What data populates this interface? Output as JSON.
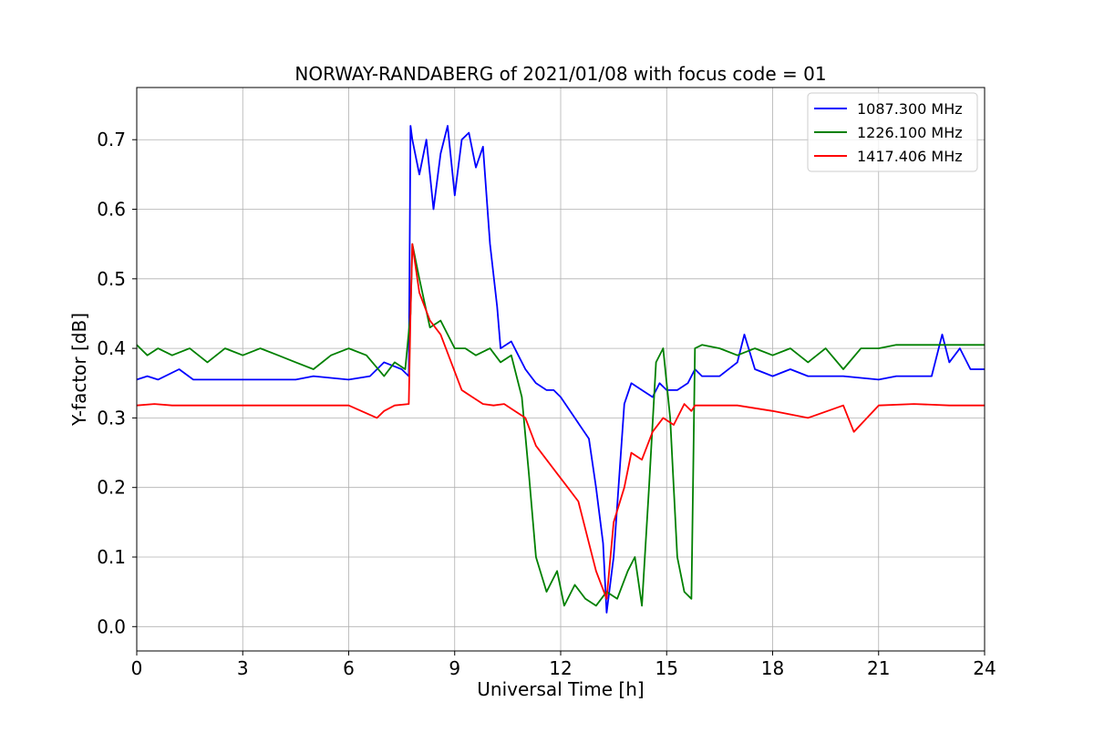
{
  "chart_data": {
    "type": "line",
    "title": "NORWAY-RANDABERG of 2021/01/08 with focus code = 01",
    "xlabel": "Universal Time [h]",
    "ylabel": "Y-factor [dB]",
    "xlim": [
      0,
      24
    ],
    "ylim": [
      -0.035,
      0.775
    ],
    "xticks": [
      0,
      3,
      6,
      9,
      12,
      15,
      18,
      21,
      24
    ],
    "yticks": [
      0.0,
      0.1,
      0.2,
      0.3,
      0.4,
      0.5,
      0.6,
      0.7
    ],
    "ytick_labels": [
      "0.0",
      "0.1",
      "0.2",
      "0.3",
      "0.4",
      "0.5",
      "0.6",
      "0.7"
    ],
    "grid": true,
    "legend_position": "top-right",
    "series": [
      {
        "name": "1087.300 MHz",
        "color": "#0000ff",
        "x": [
          0,
          0.3,
          0.6,
          1.2,
          1.6,
          2.0,
          3.0,
          4.5,
          5.0,
          6.0,
          6.6,
          7.0,
          7.5,
          7.7,
          7.75,
          7.8,
          8.0,
          8.2,
          8.4,
          8.6,
          8.8,
          9.0,
          9.2,
          9.4,
          9.6,
          9.8,
          10.0,
          10.2,
          10.3,
          10.6,
          10.8,
          11.0,
          11.3,
          11.6,
          11.8,
          12.0,
          12.4,
          12.8,
          13.0,
          13.2,
          13.3,
          13.5,
          13.8,
          14.0,
          14.3,
          14.6,
          14.8,
          15.0,
          15.3,
          15.6,
          15.8,
          16.0,
          16.5,
          17.0,
          17.2,
          17.5,
          18.0,
          18.5,
          19.0,
          20.0,
          21.0,
          21.5,
          22.0,
          22.5,
          22.8,
          23.0,
          23.3,
          23.6,
          24.0
        ],
        "y": [
          0.355,
          0.36,
          0.355,
          0.37,
          0.355,
          0.355,
          0.355,
          0.355,
          0.36,
          0.355,
          0.36,
          0.38,
          0.37,
          0.36,
          0.72,
          0.7,
          0.65,
          0.7,
          0.6,
          0.68,
          0.72,
          0.62,
          0.7,
          0.71,
          0.66,
          0.69,
          0.55,
          0.46,
          0.4,
          0.41,
          0.39,
          0.37,
          0.35,
          0.34,
          0.34,
          0.33,
          0.3,
          0.27,
          0.2,
          0.12,
          0.02,
          0.1,
          0.32,
          0.35,
          0.34,
          0.33,
          0.35,
          0.34,
          0.34,
          0.35,
          0.37,
          0.36,
          0.36,
          0.38,
          0.42,
          0.37,
          0.36,
          0.37,
          0.36,
          0.36,
          0.355,
          0.36,
          0.36,
          0.36,
          0.42,
          0.38,
          0.4,
          0.37,
          0.37
        ]
      },
      {
        "name": "1226.100 MHz",
        "color": "#008000",
        "x": [
          0,
          0.3,
          0.6,
          1.0,
          1.5,
          2.0,
          2.5,
          3.0,
          3.5,
          4.0,
          4.5,
          5.0,
          5.5,
          6.0,
          6.5,
          7.0,
          7.3,
          7.6,
          7.75,
          7.8,
          8.0,
          8.3,
          8.6,
          9.0,
          9.3,
          9.6,
          10.0,
          10.3,
          10.6,
          10.9,
          11.1,
          11.3,
          11.6,
          11.9,
          12.1,
          12.4,
          12.7,
          13.0,
          13.3,
          13.6,
          13.9,
          14.1,
          14.3,
          14.5,
          14.7,
          14.9,
          15.1,
          15.3,
          15.5,
          15.7,
          15.8,
          16.0,
          16.5,
          17.0,
          17.5,
          18.0,
          18.5,
          19.0,
          19.5,
          20.0,
          20.5,
          21.0,
          21.5,
          22.0,
          22.5,
          23.0,
          23.5,
          24.0
        ],
        "y": [
          0.405,
          0.39,
          0.4,
          0.39,
          0.4,
          0.38,
          0.4,
          0.39,
          0.4,
          0.39,
          0.38,
          0.37,
          0.39,
          0.4,
          0.39,
          0.36,
          0.38,
          0.37,
          0.45,
          0.55,
          0.5,
          0.43,
          0.44,
          0.4,
          0.4,
          0.39,
          0.4,
          0.38,
          0.39,
          0.33,
          0.22,
          0.1,
          0.05,
          0.08,
          0.03,
          0.06,
          0.04,
          0.03,
          0.05,
          0.04,
          0.08,
          0.1,
          0.03,
          0.2,
          0.38,
          0.4,
          0.3,
          0.1,
          0.05,
          0.04,
          0.4,
          0.405,
          0.4,
          0.39,
          0.4,
          0.39,
          0.4,
          0.38,
          0.4,
          0.37,
          0.4,
          0.4,
          0.405,
          0.405,
          0.405,
          0.405,
          0.405,
          0.405
        ]
      },
      {
        "name": "1417.406 MHz",
        "color": "#ff0000",
        "x": [
          0,
          0.5,
          1.0,
          2.0,
          3.0,
          4.0,
          5.0,
          6.0,
          6.8,
          7.0,
          7.3,
          7.7,
          7.75,
          7.8,
          8.0,
          8.3,
          8.6,
          8.9,
          9.2,
          9.5,
          9.8,
          10.1,
          10.4,
          10.7,
          11.0,
          11.3,
          11.6,
          11.9,
          12.2,
          12.5,
          12.8,
          13.0,
          13.3,
          13.5,
          13.8,
          14.0,
          14.3,
          14.6,
          14.9,
          15.2,
          15.5,
          15.7,
          15.8,
          16.0,
          17.0,
          18.0,
          19.0,
          20.0,
          20.3,
          21.0,
          22.0,
          23.0,
          24.0
        ],
        "y": [
          0.318,
          0.32,
          0.318,
          0.318,
          0.318,
          0.318,
          0.318,
          0.318,
          0.3,
          0.31,
          0.318,
          0.32,
          0.45,
          0.55,
          0.48,
          0.44,
          0.42,
          0.38,
          0.34,
          0.33,
          0.32,
          0.318,
          0.32,
          0.31,
          0.3,
          0.26,
          0.24,
          0.22,
          0.2,
          0.18,
          0.12,
          0.08,
          0.04,
          0.15,
          0.2,
          0.25,
          0.24,
          0.28,
          0.3,
          0.29,
          0.32,
          0.31,
          0.318,
          0.318,
          0.318,
          0.31,
          0.3,
          0.318,
          0.28,
          0.318,
          0.32,
          0.318,
          0.318
        ]
      }
    ]
  }
}
